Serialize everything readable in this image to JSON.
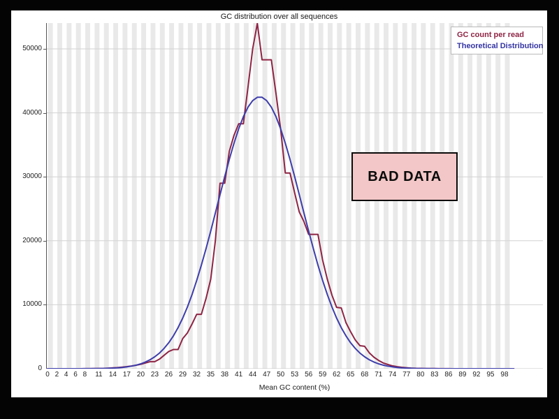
{
  "page": {
    "frame_color": "#040404",
    "slide_color": "#ffffff"
  },
  "chart": {
    "title": "GC distribution over all sequences",
    "xlabel": "Mean GC content (%)"
  },
  "legend": {
    "items": [
      {
        "label": "GC count per read",
        "color": "#8e2444"
      },
      {
        "label": "Theoretical Distribution",
        "color": "#3434a4"
      }
    ]
  },
  "annotation": {
    "label": "BAD DATA",
    "fill": "#f3c7c7",
    "border": "#0a0a0a",
    "text_color": "#0a0a0a"
  },
  "chart_data": {
    "type": "line",
    "title": "GC distribution over all sequences",
    "xlabel": "Mean GC content (%)",
    "ylabel": "",
    "xlim": [
      0,
      100
    ],
    "ylim": [
      0,
      54000
    ],
    "grid": "horizontal",
    "background": "alternating vertical gray stripes every 2% GC",
    "legend_position": "top-right",
    "y_ticks": [
      0,
      10000,
      20000,
      30000,
      40000,
      50000
    ],
    "x_tick_labels": [
      0,
      2,
      4,
      6,
      8,
      11,
      14,
      17,
      20,
      23,
      26,
      29,
      32,
      35,
      38,
      41,
      44,
      47,
      50,
      53,
      56,
      59,
      62,
      65,
      68,
      71,
      74,
      77,
      80,
      83,
      86,
      89,
      92,
      95,
      98
    ],
    "x_start": 0,
    "x_step": 1,
    "series": [
      {
        "name": "GC count per read",
        "color": "#8e2444",
        "values": [
          0,
          0,
          0,
          0,
          0,
          2,
          3,
          5,
          8,
          15,
          25,
          40,
          60,
          90,
          130,
          180,
          250,
          330,
          430,
          550,
          700,
          900,
          1100,
          1100,
          1500,
          2100,
          2700,
          3000,
          3000,
          4700,
          5600,
          7000,
          8500,
          8500,
          11000,
          14000,
          20000,
          29000,
          29000,
          34000,
          36500,
          38300,
          38300,
          44000,
          50000,
          54000,
          48300,
          48300,
          48300,
          43000,
          37500,
          30600,
          30600,
          27500,
          24500,
          23000,
          21000,
          21000,
          21000,
          17000,
          14000,
          11500,
          9600,
          9500,
          7200,
          5800,
          4500,
          3600,
          3500,
          2500,
          1800,
          1300,
          900,
          650,
          450,
          320,
          220,
          150,
          100,
          70,
          50,
          35,
          25,
          18,
          12,
          9,
          6,
          4,
          3,
          2,
          1,
          1,
          1,
          0,
          0,
          0,
          0,
          0,
          0,
          0,
          0
        ]
      },
      {
        "name": "Theoretical Distribution",
        "color": "#3d3dab",
        "values": [
          0,
          0,
          0,
          0,
          1,
          2,
          3,
          5,
          7,
          11,
          18,
          27,
          42,
          62,
          93,
          136,
          197,
          283,
          399,
          557,
          768,
          1045,
          1407,
          1867,
          2449,
          3175,
          4064,
          5140,
          6419,
          7919,
          9646,
          11607,
          13798,
          16200,
          18787,
          21519,
          24347,
          27208,
          30033,
          32743,
          35261,
          37506,
          39405,
          40891,
          41914,
          42435,
          42435,
          41914,
          40891,
          39405,
          37506,
          35261,
          32743,
          30033,
          27208,
          24347,
          21519,
          18787,
          16200,
          13798,
          11607,
          9646,
          7919,
          6419,
          5140,
          4064,
          3175,
          2449,
          1867,
          1407,
          1045,
          768,
          557,
          399,
          283,
          197,
          136,
          93,
          62,
          42,
          27,
          18,
          11,
          7,
          5,
          3,
          2,
          1,
          1,
          0,
          0,
          0,
          0,
          0,
          0,
          0,
          0,
          0,
          0,
          0,
          0
        ]
      }
    ]
  }
}
